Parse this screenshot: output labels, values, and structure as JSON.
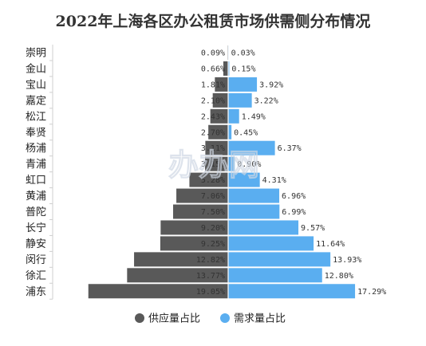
{
  "chart_data": {
    "type": "bar",
    "orientation": "horizontal-diverging",
    "title": "2022年上海各区办公租赁市场供需侧分布情况",
    "categories": [
      "崇明",
      "金山",
      "宝山",
      "嘉定",
      "松江",
      "奉贤",
      "杨浦",
      "青浦",
      "虹口",
      "黄浦",
      "普陀",
      "长宁",
      "静安",
      "闵行",
      "徐汇",
      "浦东"
    ],
    "series": [
      {
        "name": "供应量占比",
        "color": "#595959",
        "side": "left",
        "values": [
          0.09,
          0.66,
          1.81,
          2.1,
          2.43,
          2.7,
          3.11,
          3.15,
          5.28,
          7.06,
          7.5,
          9.2,
          9.25,
          12.82,
          13.77,
          19.05
        ],
        "labels": [
          "0.09%",
          "0.66%",
          "1.81%",
          "2.10%",
          "2.43%",
          "2.70%",
          "3.11%",
          "3.15%",
          "5.28%",
          "7.06%",
          "7.50%",
          "9.20%",
          "9.25%",
          "12.82%",
          "13.77%",
          "19.05%"
        ]
      },
      {
        "name": "需求量占比",
        "color": "#5aaef0",
        "side": "right",
        "values": [
          0.03,
          0.15,
          3.92,
          3.22,
          1.49,
          0.45,
          6.37,
          0.9,
          4.31,
          6.96,
          6.99,
          9.57,
          11.64,
          13.93,
          12.8,
          17.29
        ],
        "labels": [
          "0.03%",
          "0.15%",
          "3.92%",
          "3.22%",
          "1.49%",
          "0.45%",
          "6.37%",
          "0.90%",
          "4.31%",
          "6.96%",
          "6.99%",
          "9.57%",
          "11.64%",
          "13.93%",
          "12.80%",
          "17.29%"
        ]
      }
    ],
    "unit": "%",
    "legend_position": "bottom",
    "grid": false
  },
  "watermark": "办办网"
}
